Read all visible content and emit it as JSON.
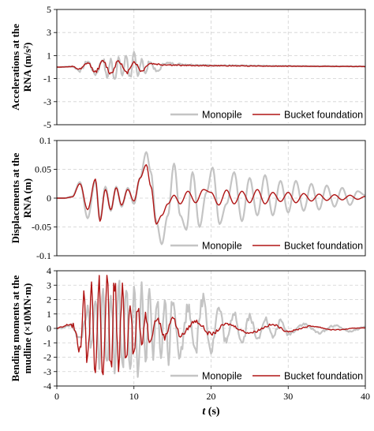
{
  "chart_data": [
    {
      "type": "line",
      "ylabel_lines": [
        "Accelerations at the",
        "RNA (m/s²)"
      ],
      "ylim": [
        -5,
        5
      ],
      "yticks": [
        -5,
        -3,
        -1,
        1,
        3,
        5
      ],
      "ytick_labels": [
        "-5",
        "-3",
        "-1",
        "1",
        "3",
        "5"
      ],
      "xlim": [
        0,
        40
      ],
      "grid": true,
      "legend_position": "bottom-right",
      "series": [
        {
          "name": "Monopile",
          "color": "#c4c4c4",
          "x": [
            0,
            2,
            3,
            4,
            5,
            6,
            6.5,
            7,
            7.5,
            8,
            8.5,
            9,
            9.5,
            10,
            10.5,
            11,
            11.5,
            12,
            13,
            14,
            16,
            18,
            20,
            25,
            30,
            35,
            40
          ],
          "y": [
            0,
            0.05,
            -0.3,
            0.5,
            -0.6,
            0.7,
            -0.9,
            0.6,
            -1.0,
            0.8,
            -0.7,
            1.0,
            -0.9,
            1.1,
            -0.9,
            0.8,
            -0.6,
            0.5,
            -0.4,
            0.35,
            0.25,
            0.2,
            0.15,
            0.12,
            0.1,
            0.08,
            0.06
          ]
        },
        {
          "name": "Bucket foundation",
          "color": "#b01515",
          "x": [
            0,
            2,
            3,
            4,
            5,
            6,
            7,
            8,
            9,
            10,
            11,
            12,
            14,
            16,
            20,
            25,
            30,
            35,
            40
          ],
          "y": [
            0,
            0.03,
            -0.2,
            0.35,
            -0.4,
            0.5,
            -0.55,
            0.6,
            -0.5,
            0.45,
            -0.35,
            0.3,
            0.2,
            0.15,
            0.12,
            0.1,
            0.08,
            0.06,
            0.05
          ]
        }
      ]
    },
    {
      "type": "line",
      "ylabel_lines": [
        "Displacements at the",
        "RNA (m)"
      ],
      "ylim": [
        -0.1,
        0.1
      ],
      "yticks": [
        -0.1,
        -0.05,
        0,
        0.05,
        0.1
      ],
      "ytick_labels": [
        "-0.1",
        "-0.05",
        "0",
        "0.05",
        "0.1"
      ],
      "xlim": [
        0,
        40
      ],
      "grid": true,
      "legend_position": "bottom-right",
      "series": [
        {
          "name": "Monopile",
          "color": "#c4c4c4",
          "x": [
            0,
            1,
            2,
            3,
            4,
            5,
            5.6,
            6.3,
            7,
            7.7,
            8.4,
            9.2,
            10,
            10.8,
            11.6,
            12.2,
            12.9,
            13.6,
            14.4,
            15.2,
            16,
            16.8,
            17.6,
            18.5,
            19.4,
            20.2,
            21.1,
            22,
            23,
            24,
            25,
            26,
            27,
            28,
            29,
            30,
            31,
            32,
            33,
            34,
            35,
            36,
            37,
            38,
            39,
            40
          ],
          "y": [
            0,
            0,
            0.003,
            0.028,
            -0.035,
            0.03,
            -0.038,
            0.02,
            -0.022,
            0.02,
            -0.015,
            0.018,
            -0.01,
            0.035,
            0.08,
            0.045,
            -0.04,
            -0.08,
            -0.03,
            0.06,
            -0.03,
            -0.055,
            0.045,
            -0.05,
            0.01,
            0.053,
            -0.045,
            -0.01,
            0.045,
            -0.04,
            0.035,
            -0.03,
            0.04,
            -0.03,
            0.03,
            -0.025,
            0.03,
            -0.022,
            0.025,
            -0.02,
            0.022,
            -0.015,
            0.018,
            -0.012,
            0.012,
            0.005
          ]
        },
        {
          "name": "Bucket foundation",
          "color": "#b01515",
          "x": [
            0,
            1,
            2,
            3,
            4,
            5,
            5.6,
            6.3,
            7,
            7.7,
            8.4,
            9.2,
            10,
            10.8,
            11.6,
            12.2,
            12.9,
            13.6,
            14.4,
            15.2,
            16,
            17,
            18,
            19,
            20,
            21,
            22,
            23,
            24,
            25,
            26,
            27,
            28,
            29,
            30,
            31,
            32,
            33,
            34,
            35,
            36,
            37,
            38,
            39,
            40
          ],
          "y": [
            0,
            0,
            0.002,
            0.025,
            -0.02,
            0.033,
            -0.04,
            0.015,
            -0.02,
            0.018,
            -0.012,
            0.015,
            -0.005,
            0.035,
            0.058,
            0.02,
            -0.045,
            -0.03,
            -0.01,
            0.005,
            -0.01,
            0.012,
            -0.008,
            0.015,
            0.01,
            -0.012,
            0.014,
            -0.01,
            0.012,
            -0.008,
            0.015,
            -0.01,
            0.01,
            -0.006,
            0.01,
            -0.008,
            0.008,
            -0.005,
            0.007,
            -0.004,
            0.006,
            -0.003,
            0.005,
            -0.002,
            0.003
          ]
        }
      ]
    },
    {
      "type": "line",
      "ylabel_lines": [
        "Bending moments at the",
        "mudline (×10MN·m)"
      ],
      "ylim": [
        -4,
        4
      ],
      "yticks": [
        -4,
        -3,
        -2,
        -1,
        0,
        1,
        2,
        3,
        4
      ],
      "ytick_labels": [
        "-4",
        "-3",
        "-2",
        "-1",
        "0",
        "1",
        "2",
        "3",
        "4"
      ],
      "xlim": [
        0,
        40
      ],
      "xticks": [
        0,
        10,
        20,
        30,
        40
      ],
      "xtick_labels": [
        "0",
        "10",
        "20",
        "30",
        "40"
      ],
      "xlabel": "t (s)",
      "grid": true,
      "legend_position": "bottom-right",
      "series": [
        {
          "name": "Monopile",
          "color": "#c4c4c4",
          "x": [
            0,
            2,
            3,
            4,
            4.5,
            5,
            5.5,
            6,
            6.5,
            7,
            7.5,
            8,
            8.5,
            9,
            9.5,
            10,
            10.5,
            11,
            11.5,
            12,
            12.5,
            13,
            13.5,
            14,
            14.5,
            15,
            16,
            17,
            18,
            19,
            20,
            21,
            22,
            23,
            24,
            25,
            26,
            27,
            28,
            29,
            30,
            32,
            34,
            36,
            38,
            40
          ],
          "y": [
            0,
            0.2,
            -0.8,
            1.2,
            -1.5,
            1.8,
            -2.2,
            2.5,
            -2.8,
            3.0,
            -3.2,
            3.5,
            -2.8,
            3.0,
            -2.5,
            2.5,
            -3.4,
            2.8,
            -2.5,
            2.2,
            -2.0,
            2.0,
            -1.8,
            1.8,
            -2.0,
            2.2,
            -1.8,
            1.5,
            -1.3,
            2.2,
            -1.5,
            1.4,
            -1.0,
            1.2,
            -1.0,
            0.9,
            -0.8,
            0.7,
            -0.6,
            0.5,
            -0.4,
            0.3,
            -0.3,
            0.2,
            -0.2,
            0.1
          ]
        },
        {
          "name": "Bucket foundation",
          "color": "#b01515",
          "x": [
            0,
            2,
            3,
            3.5,
            4,
            4.5,
            5,
            5.5,
            6,
            6.5,
            7,
            7.5,
            8,
            8.5,
            9,
            9.5,
            10,
            10.5,
            11,
            11.5,
            12,
            13,
            14,
            15,
            16,
            18,
            20,
            22,
            25,
            28,
            30,
            33,
            36,
            40
          ],
          "y": [
            0,
            0.3,
            -1.5,
            2.0,
            -2.5,
            2.8,
            -3.0,
            3.2,
            -3.5,
            3.3,
            -3.0,
            3.4,
            -2.8,
            2.5,
            -2.2,
            2.0,
            -1.8,
            1.5,
            -1.2,
            1.0,
            -0.8,
            0.7,
            -0.6,
            0.8,
            -0.5,
            0.5,
            -0.4,
            0.3,
            -0.3,
            0.25,
            -0.2,
            0.15,
            -0.1,
            0.05
          ]
        }
      ]
    }
  ]
}
